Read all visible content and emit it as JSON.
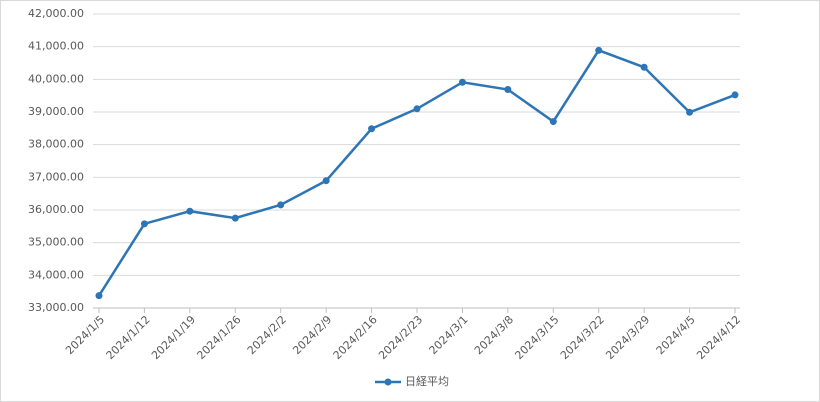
{
  "chart_data": {
    "type": "line",
    "categories": [
      "2024/1/5",
      "2024/1/12",
      "2024/1/19",
      "2024/1/26",
      "2024/2/2",
      "2024/2/9",
      "2024/2/16",
      "2024/2/23",
      "2024/3/1",
      "2024/3/8",
      "2024/3/15",
      "2024/3/22",
      "2024/3/29",
      "2024/4/5",
      "2024/4/12"
    ],
    "series": [
      {
        "name": "日経平均",
        "color": "#2e75b6",
        "values": [
          33377,
          35577,
          35963,
          35751,
          36158,
          36897,
          38487,
          39098,
          39910,
          39688,
          38707,
          40888,
          40369,
          38992,
          39523
        ]
      }
    ],
    "ylim": [
      33000,
      42000
    ],
    "yticks": [
      {
        "value": 33000,
        "label": "33,000.00"
      },
      {
        "value": 34000,
        "label": "34,000.00"
      },
      {
        "value": 35000,
        "label": "35,000.00"
      },
      {
        "value": 36000,
        "label": "36,000.00"
      },
      {
        "value": 37000,
        "label": "37,000.00"
      },
      {
        "value": 38000,
        "label": "38,000.00"
      },
      {
        "value": 39000,
        "label": "39,000.00"
      },
      {
        "value": 40000,
        "label": "40,000.00"
      },
      {
        "value": 41000,
        "label": "41,000.00"
      },
      {
        "value": 42000,
        "label": "42,000.00"
      }
    ],
    "grid": true,
    "legend": "bottom"
  }
}
